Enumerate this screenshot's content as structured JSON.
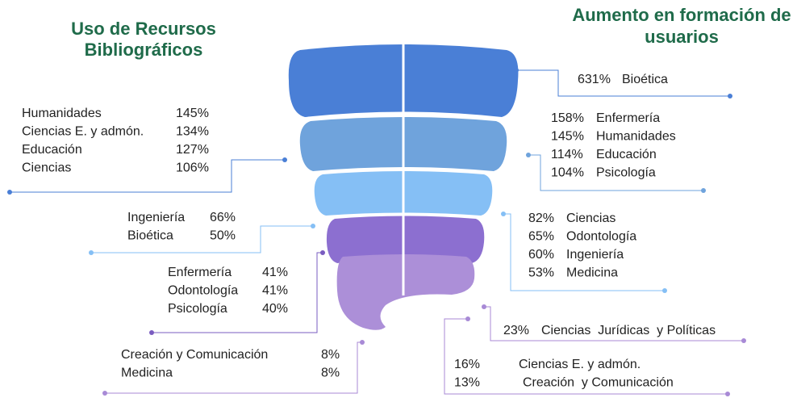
{
  "left_title": [
    "Uso de Recursos",
    "Bibliográficos"
  ],
  "right_title": [
    "Aumento en formación de",
    "usuarios"
  ],
  "left_groups": [
    {
      "items": [
        {
          "name": "Humanidades",
          "value": "145%"
        },
        {
          "name": "Ciencias E. y admón.",
          "value": "134%"
        },
        {
          "name": "Educación",
          "value": "127%"
        },
        {
          "name": "Ciencias",
          "value": "106%"
        }
      ]
    },
    {
      "items": [
        {
          "name": "Ingeniería",
          "value": "66%"
        },
        {
          "name": "Bioética",
          "value": "50%"
        }
      ]
    },
    {
      "items": [
        {
          "name": "Enfermería",
          "value": "41%"
        },
        {
          "name": "Odontología",
          "value": "41%"
        },
        {
          "name": "Psicología",
          "value": "40%"
        }
      ]
    },
    {
      "items": [
        {
          "name": "Creación y Comunicación",
          "value": "8%"
        },
        {
          "name": "Medicina",
          "value": "8%"
        }
      ]
    }
  ],
  "right_groups": [
    {
      "items": [
        {
          "value": "631%",
          "name": "Bioética"
        }
      ]
    },
    {
      "items": [
        {
          "value": "158%",
          "name": "Enfermería"
        },
        {
          "value": "145%",
          "name": "Humanidades"
        },
        {
          "value": "114%",
          "name": "Educación"
        },
        {
          "value": "104%",
          "name": "Psicología"
        }
      ]
    },
    {
      "items": [
        {
          "value": "82%",
          "name": "Ciencias"
        },
        {
          "value": "65%",
          "name": "Odontología"
        },
        {
          "value": "60%",
          "name": "Ingeniería"
        },
        {
          "value": "53%",
          "name": "Medicina"
        }
      ]
    },
    {
      "items": [
        {
          "value": "23%",
          "name": "Ciencias  Jurídicas  y Políticas"
        }
      ]
    },
    {
      "items": [
        {
          "value": "16%",
          "name": "Ciencias E. y admón."
        },
        {
          "value": "13%",
          "name": "Creación  y Comunicación"
        }
      ]
    }
  ]
}
